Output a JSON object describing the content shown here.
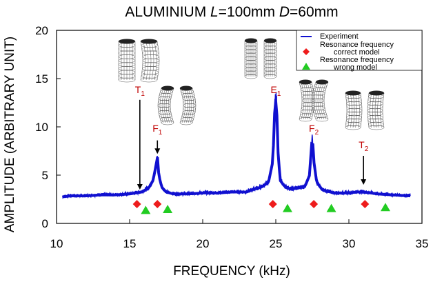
{
  "chart_data": {
    "type": "line",
    "title_parts": [
      "ALUMINIUM",
      "L",
      "=100mm",
      "D",
      "=60mm"
    ],
    "xlabel": "FREQUENCY (kHz)",
    "ylabel": "AMPLITUDE (ARBITRARY UNIT)",
    "xlim": [
      10,
      35
    ],
    "ylim": [
      0,
      20
    ],
    "xticks": [
      10,
      15,
      20,
      25,
      30,
      35
    ],
    "yticks": [
      0,
      5,
      10,
      15,
      20
    ],
    "grid": false,
    "legend_position": "top-right",
    "series": [
      {
        "name": "Experiment",
        "color": "#1010d0",
        "x": [
          10.4,
          11,
          12,
          13,
          14,
          15,
          15.8,
          16.3,
          16.6,
          16.8,
          16.9,
          17.0,
          17.2,
          17.5,
          18,
          19,
          20,
          21,
          22,
          23,
          23.5,
          24.0,
          24.5,
          24.8,
          24.95,
          25.05,
          25.15,
          25.3,
          25.6,
          26,
          26.5,
          27,
          27.3,
          27.5,
          27.6,
          27.8,
          28.2,
          29,
          30,
          30.5,
          31,
          32,
          33,
          34.2
        ],
        "y": [
          2.8,
          2.9,
          2.9,
          3.0,
          3.0,
          3.1,
          3.3,
          3.7,
          4.5,
          6.0,
          7.0,
          5.0,
          3.8,
          3.3,
          3.1,
          3.1,
          3.2,
          3.2,
          3.3,
          3.3,
          3.6,
          3.8,
          4.3,
          6.5,
          12.8,
          12.6,
          7.5,
          4.5,
          3.9,
          3.6,
          3.7,
          3.9,
          5.0,
          9.2,
          6.5,
          4.3,
          3.5,
          3.2,
          3.2,
          3.3,
          3.3,
          3.1,
          3.0,
          2.9
        ]
      },
      {
        "name": "Resonance frequency correct model",
        "color": "#ee1c1c",
        "marker": "diamond",
        "x": [
          15.5,
          16.9,
          24.8,
          27.6,
          31.1
        ],
        "y": [
          2.0,
          2.0,
          2.0,
          2.0,
          2.0
        ]
      },
      {
        "name": "Resonance frequency wrong model",
        "color": "#22cc22",
        "marker": "triangle",
        "x": [
          16.1,
          17.6,
          25.8,
          28.8,
          32.5
        ],
        "y": [
          1.4,
          1.5,
          1.6,
          1.6,
          1.7
        ]
      }
    ],
    "annotations": [
      {
        "label": "T",
        "sub": "1",
        "x": 15.7,
        "y_text": 13.5,
        "y_arrow_from": 12.8,
        "y_arrow_to": 3.5
      },
      {
        "label": "F",
        "sub": "1",
        "x": 16.9,
        "y_text": 9.5,
        "y_arrow_from": 8.6,
        "y_arrow_to": 7.2
      },
      {
        "label": "E",
        "sub": "1",
        "x": 25.0,
        "y_text": 13.5,
        "y_arrow_from": null,
        "y_arrow_to": null
      },
      {
        "label": "F",
        "sub": "2",
        "x": 27.6,
        "y_text": 9.5,
        "y_arrow_from": null,
        "y_arrow_to": null
      },
      {
        "label": "T",
        "sub": "2",
        "x": 31.0,
        "y_text": 7.8,
        "y_arrow_from": 7.0,
        "y_arrow_to": 4.0
      }
    ],
    "legend": {
      "entries": [
        {
          "lines": [
            "Experiment"
          ],
          "color": "#1010d0",
          "symbol": "line"
        },
        {
          "lines": [
            "Resonance frequency",
            "correct model"
          ],
          "color": "#ee1c1c",
          "symbol": "diamond"
        },
        {
          "lines": [
            "Resonance frequency",
            "wrong model"
          ],
          "color": "#22cc22",
          "symbol": "triangle"
        }
      ]
    },
    "mode_shape_icons": [
      "torsional",
      "torsional",
      "flexural",
      "extensional",
      "extensional",
      "flexural",
      "flexural",
      "torsional",
      "torsional"
    ]
  }
}
